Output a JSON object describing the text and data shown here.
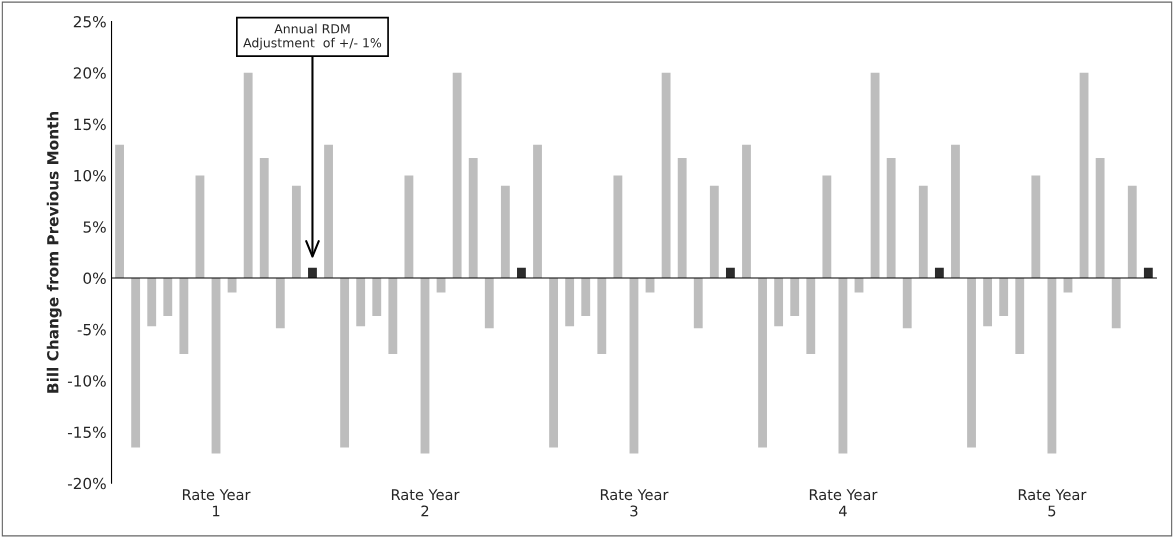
{
  "chart_data": {
    "type": "bar",
    "ylabel": "Bill Change from Previous Month",
    "categories": [
      "Rate Year\n1",
      "Rate Year\n2",
      "Rate Year\n3",
      "Rate Year\n4",
      "Rate Year\n5"
    ],
    "series": [
      {
        "color": "#bdbdbd",
        "values": [
          13,
          13,
          13,
          13,
          13
        ]
      },
      {
        "color": "#bdbdbd",
        "values": [
          -16.5,
          -16.5,
          -16.5,
          -16.5,
          -16.5
        ]
      },
      {
        "color": "#bdbdbd",
        "values": [
          -4.7,
          -4.7,
          -4.7,
          -4.7,
          -4.7
        ]
      },
      {
        "color": "#bdbdbd",
        "values": [
          -3.7,
          -3.7,
          -3.7,
          -3.7,
          -3.7
        ]
      },
      {
        "color": "#bdbdbd",
        "values": [
          -7.4,
          -7.4,
          -7.4,
          -7.4,
          -7.4
        ]
      },
      {
        "color": "#bdbdbd",
        "values": [
          10,
          10,
          10,
          10,
          10
        ]
      },
      {
        "color": "#bdbdbd",
        "values": [
          -17.1,
          -17.1,
          -17.1,
          -17.1,
          -17.1
        ]
      },
      {
        "color": "#bdbdbd",
        "values": [
          -1.4,
          -1.4,
          -1.4,
          -1.4,
          -1.4
        ]
      },
      {
        "color": "#bdbdbd",
        "values": [
          20,
          20,
          20,
          20,
          20
        ]
      },
      {
        "color": "#bdbdbd",
        "values": [
          11.7,
          11.7,
          11.7,
          11.7,
          11.7
        ]
      },
      {
        "color": "#bdbdbd",
        "values": [
          -4.9,
          -4.9,
          -4.9,
          -4.9,
          -4.9
        ]
      },
      {
        "color": "#bdbdbd",
        "values": [
          9,
          9,
          9,
          9,
          9
        ]
      },
      {
        "color": "#2b2b2b",
        "values": [
          1,
          1,
          1,
          1,
          1
        ]
      }
    ],
    "ylim": [
      -20,
      25
    ],
    "yticks": [
      {
        "value": -20,
        "label": "-20%"
      },
      {
        "value": -15,
        "label": "-15%"
      },
      {
        "value": -10,
        "label": "-10%"
      },
      {
        "value": -5,
        "label": "-5%"
      },
      {
        "value": 0,
        "label": "0%"
      },
      {
        "value": 5,
        "label": "5%"
      },
      {
        "value": 10,
        "label": "10%"
      },
      {
        "value": 15,
        "label": "15%"
      },
      {
        "value": 20,
        "label": "20%"
      },
      {
        "value": 25,
        "label": "25%"
      }
    ],
    "annotations": [
      "Annual RDM\nAdjustment  of +/- 1%"
    ],
    "legend": false
  }
}
